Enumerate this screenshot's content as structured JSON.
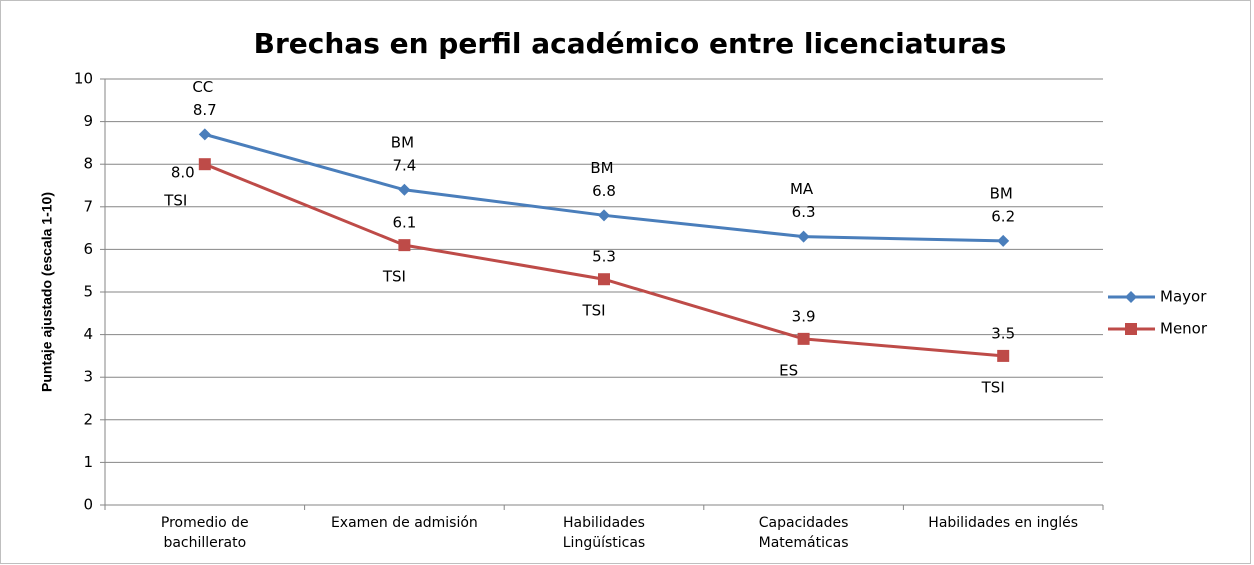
{
  "chart_data": {
    "type": "line",
    "title": "Brechas en perfil académico entre licenciaturas",
    "y_label": "Puntaje ajustado (escala 1-10)",
    "categories": [
      "Promedio de\nbachillerato",
      "Examen de admisión",
      "Habilidades\nLingüísticas",
      "Capacidades\nMatemáticas",
      "Habilidades en inglés"
    ],
    "series": [
      {
        "name": "Mayor",
        "color": "#4a7ebb",
        "marker": "diamond",
        "values": [
          8.7,
          7.4,
          6.8,
          6.3,
          6.2
        ],
        "point_labels": [
          "CC",
          "BM",
          "BM",
          "MA",
          "BM"
        ]
      },
      {
        "name": "Menor",
        "color": "#be4b48",
        "marker": "square",
        "values": [
          8,
          6.1,
          5.3,
          3.9,
          3.5
        ],
        "value_labels": [
          "8.0",
          "6.1",
          "5.3",
          "3.9",
          "3.5"
        ],
        "point_labels": [
          "TSI",
          "TSI",
          "TSI",
          "ES",
          "TSI"
        ]
      }
    ],
    "ylim": [
      0,
      10
    ],
    "yticks": [
      0,
      1,
      2,
      3,
      4,
      5,
      6,
      7,
      8,
      9,
      10
    ],
    "grid": true,
    "legend": "right"
  }
}
